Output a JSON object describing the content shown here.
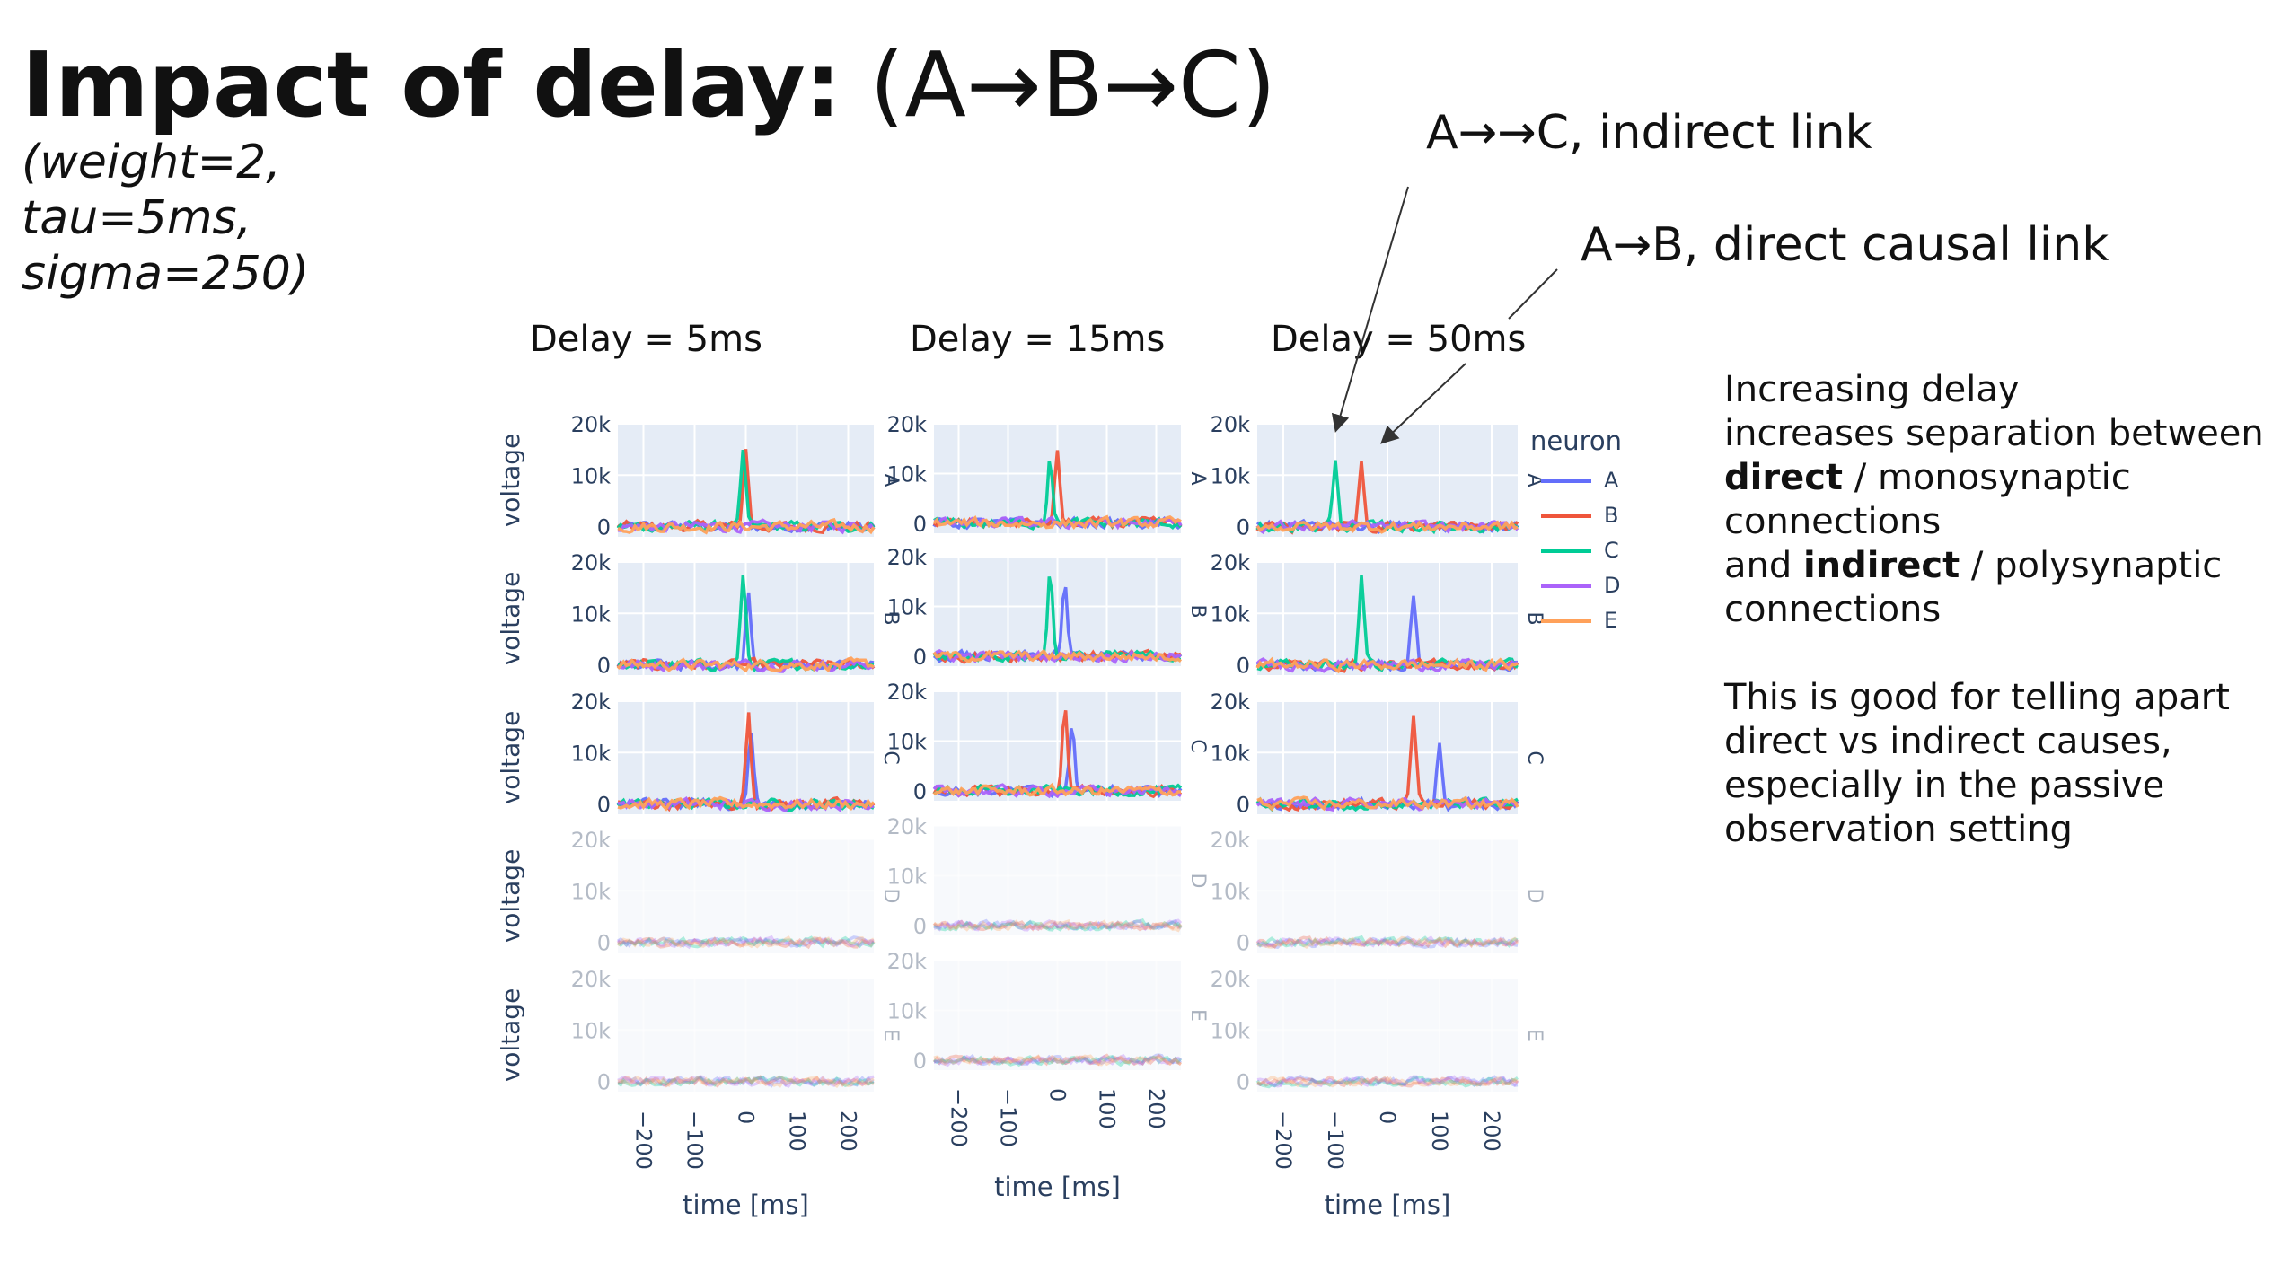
{
  "slide": {
    "title_bold": "Impact of delay:",
    "title_rest": " (A→B→C)",
    "params": [
      "(weight=2,",
      "tau=5ms,",
      "sigma=250)"
    ],
    "annotation_indirect": "A→→C, indirect link",
    "annotation_direct": "A→B, direct causal link",
    "explanation": {
      "line1": "Increasing delay",
      "line2": "increases separation between",
      "line3_bold": "direct",
      "line3_rest": " / monosynaptic",
      "line4": "connections",
      "line5_pre": "and ",
      "line5_bold": "indirect",
      "line5_rest": " / polysynaptic",
      "line6": "connections",
      "line7": "This is good for telling apart",
      "line8": "direct vs indirect causes,",
      "line9": "especially in the passive",
      "line10": "observation setting"
    }
  },
  "chart_data": [
    {
      "type": "line",
      "title": "Delay = 5ms",
      "xlabel": "time [ms]",
      "ylabel": "voltage",
      "xlim": [
        -250,
        250
      ],
      "ylim": [
        -2000,
        20000
      ],
      "x_ticks": [
        "−200",
        "−100",
        "0",
        "100",
        "200"
      ],
      "y_ticks": [
        "0",
        "10k",
        "20k"
      ],
      "facet_labels": [
        "A",
        "B",
        "C",
        "D",
        "E"
      ],
      "facets": [
        {
          "row": "A",
          "peaks": [
            {
              "neuron": "C",
              "x": -5,
              "y": 14000
            },
            {
              "neuron": "B",
              "x": 0,
              "y": 15000
            }
          ]
        },
        {
          "row": "B",
          "peaks": [
            {
              "neuron": "C",
              "x": -5,
              "y": 17500
            },
            {
              "neuron": "A",
              "x": 5,
              "y": 15000
            }
          ]
        },
        {
          "row": "C",
          "peaks": [
            {
              "neuron": "B",
              "x": 5,
              "y": 17500
            },
            {
              "neuron": "A",
              "x": 10,
              "y": 14000
            }
          ]
        },
        {
          "row": "D",
          "peaks": []
        },
        {
          "row": "E",
          "peaks": []
        }
      ]
    },
    {
      "type": "line",
      "title": "Delay = 15ms",
      "xlabel": "time [ms]",
      "ylabel": "",
      "xlim": [
        -250,
        250
      ],
      "ylim": [
        -2000,
        20000
      ],
      "x_ticks": [
        "−200",
        "−100",
        "0",
        "100",
        "200"
      ],
      "y_ticks": [
        "0",
        "10k",
        "20k"
      ],
      "facet_labels": [
        "A",
        "B",
        "C",
        "D",
        "E"
      ],
      "facets": [
        {
          "row": "A",
          "peaks": [
            {
              "neuron": "C",
              "x": -15,
              "y": 14000
            },
            {
              "neuron": "B",
              "x": 0,
              "y": 14500
            }
          ]
        },
        {
          "row": "B",
          "peaks": [
            {
              "neuron": "C",
              "x": -15,
              "y": 17500
            },
            {
              "neuron": "A",
              "x": 15,
              "y": 14500
            }
          ]
        },
        {
          "row": "C",
          "peaks": [
            {
              "neuron": "B",
              "x": 15,
              "y": 17500
            },
            {
              "neuron": "A",
              "x": 30,
              "y": 13500
            }
          ]
        },
        {
          "row": "D",
          "peaks": []
        },
        {
          "row": "E",
          "peaks": []
        }
      ]
    },
    {
      "type": "line",
      "title": "Delay = 50ms",
      "xlabel": "time [ms]",
      "ylabel": "",
      "xlim": [
        -250,
        250
      ],
      "ylim": [
        -2000,
        20000
      ],
      "x_ticks": [
        "−200",
        "−100",
        "0",
        "100",
        "200"
      ],
      "y_ticks": [
        "0",
        "10k",
        "20k"
      ],
      "facet_labels": [
        "A",
        "B",
        "C",
        "D",
        "E"
      ],
      "legend": {
        "title": "neuron",
        "placement": "right",
        "entries": [
          "A",
          "B",
          "C",
          "D",
          "E"
        ]
      },
      "facets": [
        {
          "row": "A",
          "peaks": [
            {
              "neuron": "C",
              "x": -100,
              "y": 12500
            },
            {
              "neuron": "B",
              "x": -50,
              "y": 13000
            }
          ]
        },
        {
          "row": "B",
          "peaks": [
            {
              "neuron": "C",
              "x": -50,
              "y": 17500
            },
            {
              "neuron": "A",
              "x": 50,
              "y": 13500
            }
          ]
        },
        {
          "row": "C",
          "peaks": [
            {
              "neuron": "B",
              "x": 50,
              "y": 17500
            },
            {
              "neuron": "A",
              "x": 100,
              "y": 12500
            }
          ]
        },
        {
          "row": "D",
          "peaks": []
        },
        {
          "row": "E",
          "peaks": []
        }
      ]
    }
  ],
  "colors": {
    "A": "#636efa",
    "B": "#ef553b",
    "C": "#00cc96",
    "D": "#ab63fa",
    "E": "#ffa15a",
    "plot_bg": "#e5ecf6",
    "axis_text": "#2a3f5f"
  }
}
